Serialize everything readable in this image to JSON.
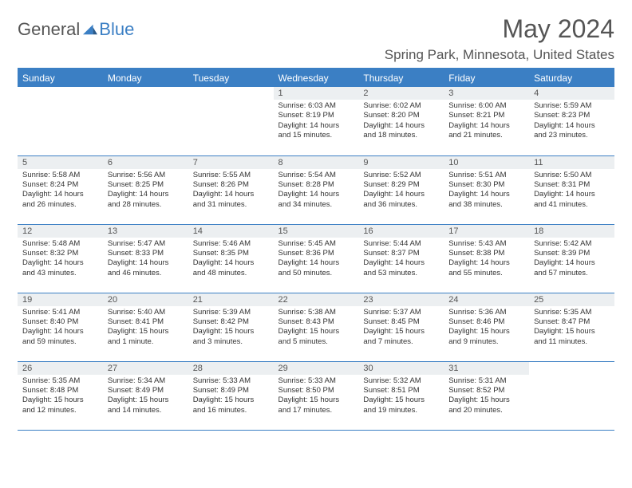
{
  "brand": {
    "general": "General",
    "blue": "Blue"
  },
  "title": "May 2024",
  "location": "Spring Park, Minnesota, United States",
  "headers": [
    "Sunday",
    "Monday",
    "Tuesday",
    "Wednesday",
    "Thursday",
    "Friday",
    "Saturday"
  ],
  "colors": {
    "accent": "#3b7fc4",
    "headerBg": "#3b7fc4",
    "dayNumBg": "#eceff1",
    "text": "#333333"
  },
  "weeks": [
    [
      null,
      null,
      null,
      {
        "n": "1",
        "sr": "Sunrise: 6:03 AM",
        "ss": "Sunset: 8:19 PM",
        "d1": "Daylight: 14 hours",
        "d2": "and 15 minutes."
      },
      {
        "n": "2",
        "sr": "Sunrise: 6:02 AM",
        "ss": "Sunset: 8:20 PM",
        "d1": "Daylight: 14 hours",
        "d2": "and 18 minutes."
      },
      {
        "n": "3",
        "sr": "Sunrise: 6:00 AM",
        "ss": "Sunset: 8:21 PM",
        "d1": "Daylight: 14 hours",
        "d2": "and 21 minutes."
      },
      {
        "n": "4",
        "sr": "Sunrise: 5:59 AM",
        "ss": "Sunset: 8:23 PM",
        "d1": "Daylight: 14 hours",
        "d2": "and 23 minutes."
      }
    ],
    [
      {
        "n": "5",
        "sr": "Sunrise: 5:58 AM",
        "ss": "Sunset: 8:24 PM",
        "d1": "Daylight: 14 hours",
        "d2": "and 26 minutes."
      },
      {
        "n": "6",
        "sr": "Sunrise: 5:56 AM",
        "ss": "Sunset: 8:25 PM",
        "d1": "Daylight: 14 hours",
        "d2": "and 28 minutes."
      },
      {
        "n": "7",
        "sr": "Sunrise: 5:55 AM",
        "ss": "Sunset: 8:26 PM",
        "d1": "Daylight: 14 hours",
        "d2": "and 31 minutes."
      },
      {
        "n": "8",
        "sr": "Sunrise: 5:54 AM",
        "ss": "Sunset: 8:28 PM",
        "d1": "Daylight: 14 hours",
        "d2": "and 34 minutes."
      },
      {
        "n": "9",
        "sr": "Sunrise: 5:52 AM",
        "ss": "Sunset: 8:29 PM",
        "d1": "Daylight: 14 hours",
        "d2": "and 36 minutes."
      },
      {
        "n": "10",
        "sr": "Sunrise: 5:51 AM",
        "ss": "Sunset: 8:30 PM",
        "d1": "Daylight: 14 hours",
        "d2": "and 38 minutes."
      },
      {
        "n": "11",
        "sr": "Sunrise: 5:50 AM",
        "ss": "Sunset: 8:31 PM",
        "d1": "Daylight: 14 hours",
        "d2": "and 41 minutes."
      }
    ],
    [
      {
        "n": "12",
        "sr": "Sunrise: 5:48 AM",
        "ss": "Sunset: 8:32 PM",
        "d1": "Daylight: 14 hours",
        "d2": "and 43 minutes."
      },
      {
        "n": "13",
        "sr": "Sunrise: 5:47 AM",
        "ss": "Sunset: 8:33 PM",
        "d1": "Daylight: 14 hours",
        "d2": "and 46 minutes."
      },
      {
        "n": "14",
        "sr": "Sunrise: 5:46 AM",
        "ss": "Sunset: 8:35 PM",
        "d1": "Daylight: 14 hours",
        "d2": "and 48 minutes."
      },
      {
        "n": "15",
        "sr": "Sunrise: 5:45 AM",
        "ss": "Sunset: 8:36 PM",
        "d1": "Daylight: 14 hours",
        "d2": "and 50 minutes."
      },
      {
        "n": "16",
        "sr": "Sunrise: 5:44 AM",
        "ss": "Sunset: 8:37 PM",
        "d1": "Daylight: 14 hours",
        "d2": "and 53 minutes."
      },
      {
        "n": "17",
        "sr": "Sunrise: 5:43 AM",
        "ss": "Sunset: 8:38 PM",
        "d1": "Daylight: 14 hours",
        "d2": "and 55 minutes."
      },
      {
        "n": "18",
        "sr": "Sunrise: 5:42 AM",
        "ss": "Sunset: 8:39 PM",
        "d1": "Daylight: 14 hours",
        "d2": "and 57 minutes."
      }
    ],
    [
      {
        "n": "19",
        "sr": "Sunrise: 5:41 AM",
        "ss": "Sunset: 8:40 PM",
        "d1": "Daylight: 14 hours",
        "d2": "and 59 minutes."
      },
      {
        "n": "20",
        "sr": "Sunrise: 5:40 AM",
        "ss": "Sunset: 8:41 PM",
        "d1": "Daylight: 15 hours",
        "d2": "and 1 minute."
      },
      {
        "n": "21",
        "sr": "Sunrise: 5:39 AM",
        "ss": "Sunset: 8:42 PM",
        "d1": "Daylight: 15 hours",
        "d2": "and 3 minutes."
      },
      {
        "n": "22",
        "sr": "Sunrise: 5:38 AM",
        "ss": "Sunset: 8:43 PM",
        "d1": "Daylight: 15 hours",
        "d2": "and 5 minutes."
      },
      {
        "n": "23",
        "sr": "Sunrise: 5:37 AM",
        "ss": "Sunset: 8:45 PM",
        "d1": "Daylight: 15 hours",
        "d2": "and 7 minutes."
      },
      {
        "n": "24",
        "sr": "Sunrise: 5:36 AM",
        "ss": "Sunset: 8:46 PM",
        "d1": "Daylight: 15 hours",
        "d2": "and 9 minutes."
      },
      {
        "n": "25",
        "sr": "Sunrise: 5:35 AM",
        "ss": "Sunset: 8:47 PM",
        "d1": "Daylight: 15 hours",
        "d2": "and 11 minutes."
      }
    ],
    [
      {
        "n": "26",
        "sr": "Sunrise: 5:35 AM",
        "ss": "Sunset: 8:48 PM",
        "d1": "Daylight: 15 hours",
        "d2": "and 12 minutes."
      },
      {
        "n": "27",
        "sr": "Sunrise: 5:34 AM",
        "ss": "Sunset: 8:49 PM",
        "d1": "Daylight: 15 hours",
        "d2": "and 14 minutes."
      },
      {
        "n": "28",
        "sr": "Sunrise: 5:33 AM",
        "ss": "Sunset: 8:49 PM",
        "d1": "Daylight: 15 hours",
        "d2": "and 16 minutes."
      },
      {
        "n": "29",
        "sr": "Sunrise: 5:33 AM",
        "ss": "Sunset: 8:50 PM",
        "d1": "Daylight: 15 hours",
        "d2": "and 17 minutes."
      },
      {
        "n": "30",
        "sr": "Sunrise: 5:32 AM",
        "ss": "Sunset: 8:51 PM",
        "d1": "Daylight: 15 hours",
        "d2": "and 19 minutes."
      },
      {
        "n": "31",
        "sr": "Sunrise: 5:31 AM",
        "ss": "Sunset: 8:52 PM",
        "d1": "Daylight: 15 hours",
        "d2": "and 20 minutes."
      },
      null
    ]
  ]
}
